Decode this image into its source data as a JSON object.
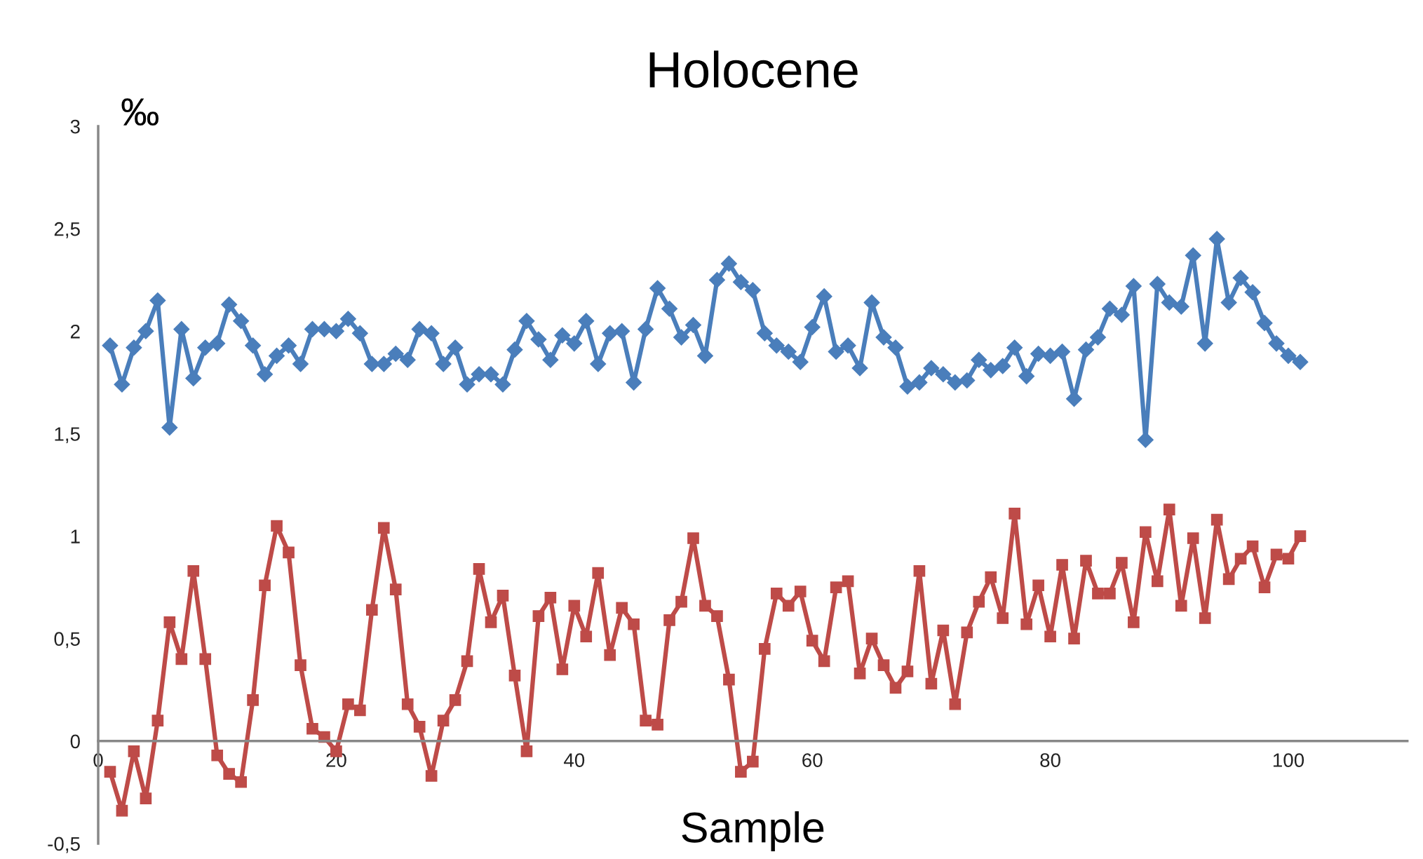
{
  "chart_data": {
    "type": "line",
    "title": "Holocene",
    "xlabel": "Sample",
    "ylabel": "‰",
    "x": [
      1,
      2,
      3,
      4,
      5,
      6,
      7,
      8,
      9,
      10,
      11,
      12,
      13,
      14,
      15,
      16,
      17,
      18,
      19,
      20,
      21,
      22,
      23,
      24,
      25,
      26,
      27,
      28,
      29,
      30,
      31,
      32,
      33,
      34,
      35,
      36,
      37,
      38,
      39,
      40,
      41,
      42,
      43,
      44,
      45,
      46,
      47,
      48,
      49,
      50,
      51,
      52,
      53,
      54,
      55,
      56,
      57,
      58,
      59,
      60,
      61,
      62,
      63,
      64,
      65,
      66,
      67,
      68,
      69,
      70,
      71,
      72,
      73,
      74,
      75,
      76,
      77,
      78,
      79,
      80,
      81,
      82,
      83,
      84,
      85,
      86,
      87,
      88,
      89,
      90,
      91,
      92,
      93,
      94,
      95,
      96,
      97,
      98,
      99,
      100,
      101
    ],
    "series": [
      {
        "color": "#4a7ebb",
        "marker": "diamond",
        "values": [
          1.93,
          1.74,
          1.92,
          2.0,
          2.15,
          1.53,
          2.01,
          1.77,
          1.92,
          1.94,
          2.13,
          2.05,
          1.93,
          1.79,
          1.88,
          1.93,
          1.84,
          2.01,
          2.01,
          2.0,
          2.06,
          1.99,
          1.84,
          1.84,
          1.89,
          1.86,
          2.01,
          1.99,
          1.84,
          1.92,
          1.74,
          1.79,
          1.79,
          1.74,
          1.91,
          2.05,
          1.96,
          1.86,
          1.98,
          1.94,
          2.05,
          1.84,
          1.99,
          2.0,
          1.75,
          2.01,
          2.21,
          2.11,
          1.97,
          2.03,
          1.88,
          2.25,
          2.33,
          2.24,
          2.2,
          1.99,
          1.93,
          1.9,
          1.85,
          2.02,
          2.17,
          1.9,
          1.93,
          1.82,
          2.14,
          1.97,
          1.92,
          1.73,
          1.75,
          1.82,
          1.79,
          1.75,
          1.76,
          1.86,
          1.81,
          1.83,
          1.92,
          1.78,
          1.89,
          1.88,
          1.9,
          1.67,
          1.91,
          1.97,
          2.11,
          2.08,
          2.22,
          1.47,
          2.23,
          2.14,
          2.12,
          2.37,
          1.94,
          2.45,
          2.14,
          2.26,
          2.19,
          2.04,
          1.94,
          1.88,
          1.85
        ]
      },
      {
        "color": "#be4b48",
        "marker": "square",
        "values": [
          -0.15,
          -0.34,
          -0.05,
          -0.28,
          0.1,
          0.58,
          0.4,
          0.83,
          0.4,
          -0.07,
          -0.16,
          -0.2,
          0.2,
          0.76,
          1.05,
          0.92,
          0.37,
          0.06,
          0.02,
          -0.05,
          0.18,
          0.15,
          0.64,
          1.04,
          0.74,
          0.18,
          0.07,
          -0.17,
          0.1,
          0.2,
          0.39,
          0.84,
          0.58,
          0.71,
          0.32,
          -0.05,
          0.61,
          0.7,
          0.35,
          0.66,
          0.51,
          0.82,
          0.42,
          0.65,
          0.57,
          0.1,
          0.08,
          0.59,
          0.68,
          0.99,
          0.66,
          0.61,
          0.3,
          -0.15,
          -0.1,
          0.45,
          0.72,
          0.66,
          0.73,
          0.49,
          0.39,
          0.75,
          0.78,
          0.33,
          0.5,
          0.37,
          0.26,
          0.34,
          0.83,
          0.28,
          0.54,
          0.18,
          0.53,
          0.68,
          0.8,
          0.6,
          1.11,
          0.57,
          0.76,
          0.51,
          0.86,
          0.5,
          0.88,
          0.72,
          0.72,
          0.87,
          0.58,
          1.02,
          0.78,
          1.13,
          0.66,
          0.99,
          0.6,
          1.08,
          0.79,
          0.89,
          0.95,
          0.75,
          0.91,
          0.89,
          1.0
        ]
      }
    ],
    "xlim": [
      0,
      110
    ],
    "xticks": [
      0,
      20,
      40,
      60,
      80,
      100
    ],
    "ylim": [
      -0.5,
      3
    ],
    "yticks": [
      {
        "value": -0.5,
        "label": "-0,5"
      },
      0,
      {
        "value": 0.5,
        "label": "0,5"
      },
      1,
      {
        "value": 1.5,
        "label": "1,5"
      },
      2,
      {
        "value": 2.5,
        "label": "2,5"
      },
      3
    ],
    "grid": false,
    "legend": false,
    "line_style": "solid"
  }
}
